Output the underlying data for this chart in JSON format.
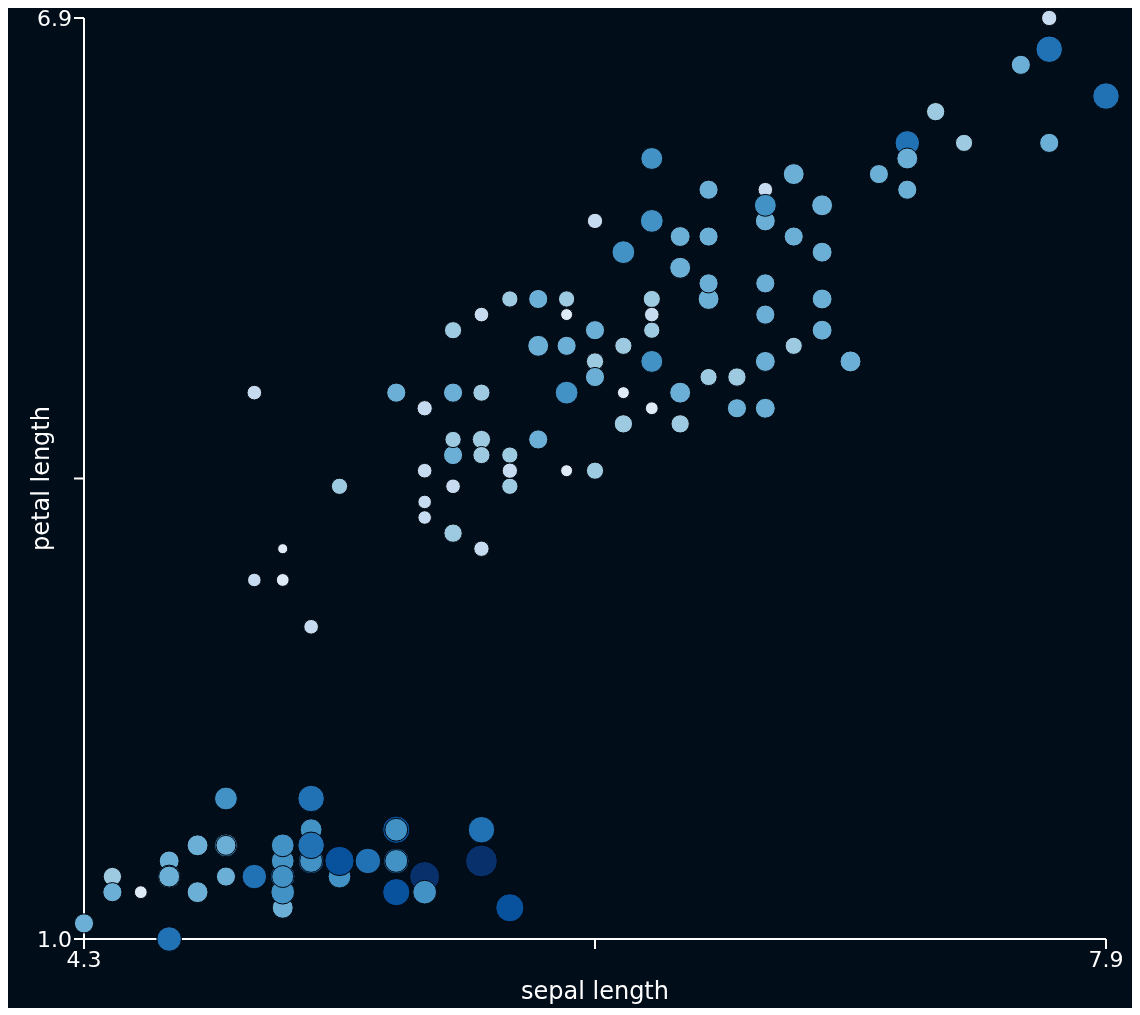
{
  "chart_data": {
    "type": "bubble",
    "xlabel": "sepal length",
    "ylabel": "petal length",
    "xlim": [
      4.3,
      7.9
    ],
    "ylim": [
      1.0,
      6.9
    ],
    "xticks": [
      4.3,
      {
        "value": 6.1,
        "label": null
      },
      7.9
    ],
    "yticks": [
      {
        "value": 1.0,
        "label": "1.0"
      },
      {
        "value": 3.95,
        "label": null
      },
      6.9
    ],
    "x": [
      4.7,
      4.6,
      5.0,
      5.4,
      4.6,
      5.0,
      4.4,
      5.4,
      4.8,
      4.8,
      4.3,
      5.8,
      5.7,
      5.4,
      5.7,
      5.4,
      5.1,
      4.6,
      5.1,
      4.8,
      5.0,
      5.2,
      4.7,
      4.8,
      5.4,
      5.2,
      5.5,
      5.0,
      5.5,
      4.9,
      4.4,
      5.1,
      5.0,
      4.5,
      5.1,
      5.1,
      4.6,
      5.3,
      5.0,
      7.0,
      6.4,
      6.9,
      6.5,
      5.7,
      6.3,
      4.9,
      6.6,
      5.2,
      5.0,
      5.9,
      6.0,
      6.1,
      5.6,
      6.7,
      5.6,
      5.8,
      6.2,
      5.6,
      5.9,
      6.1,
      6.1,
      6.4,
      6.6,
      6.8,
      6.7,
      5.7,
      5.5,
      5.5,
      5.8,
      6.0,
      5.4,
      6.0,
      6.7,
      6.3,
      5.6,
      5.5,
      5.5,
      6.1,
      5.8,
      5.0,
      5.6,
      5.7,
      5.7,
      6.2,
      5.1,
      5.7,
      6.3,
      5.8,
      7.1,
      6.5,
      7.6,
      4.9,
      7.3,
      6.7,
      7.2,
      6.5,
      6.8,
      5.7,
      6.4,
      6.5,
      7.7,
      7.7,
      6.0,
      6.9,
      5.6,
      6.3,
      7.2,
      6.2,
      6.1,
      7.2,
      7.4,
      7.9,
      6.3,
      6.1,
      7.7,
      6.3,
      6.4,
      6.0,
      6.9,
      6.7,
      6.9,
      6.8,
      6.7,
      6.7,
      6.3,
      6.5,
      6.2,
      5.9
    ],
    "values": [
      1.3,
      1.5,
      1.4,
      1.7,
      1.4,
      1.5,
      1.4,
      1.5,
      1.6,
      1.4,
      1.1,
      1.2,
      1.5,
      1.3,
      1.7,
      1.7,
      1.5,
      1.0,
      1.7,
      1.9,
      1.6,
      1.4,
      1.6,
      1.6,
      1.5,
      1.5,
      1.4,
      1.2,
      1.3,
      1.4,
      1.3,
      1.5,
      1.3,
      1.3,
      1.9,
      1.6,
      1.4,
      1.5,
      1.4,
      4.7,
      4.5,
      4.9,
      4.6,
      4.5,
      4.7,
      3.3,
      4.6,
      3.9,
      3.5,
      4.2,
      4.0,
      4.7,
      3.6,
      4.4,
      4.5,
      4.1,
      4.5,
      3.9,
      4.8,
      4.0,
      4.7,
      4.3,
      4.4,
      4.8,
      5.0,
      3.5,
      3.8,
      3.7,
      3.9,
      5.1,
      4.5,
      4.5,
      4.7,
      4.4,
      4.1,
      4.0,
      4.4,
      4.6,
      4.0,
      3.3,
      4.2,
      4.2,
      4.2,
      4.3,
      3.0,
      4.1,
      6.0,
      5.1,
      5.9,
      5.8,
      6.6,
      4.5,
      6.3,
      5.8,
      6.1,
      5.1,
      5.5,
      5.0,
      5.3,
      5.5,
      6.7,
      6.9,
      5.0,
      5.7,
      4.9,
      4.9,
      6.0,
      4.8,
      4.9,
      5.8,
      6.1,
      6.4,
      5.1,
      5.6,
      6.1,
      5.6,
      5.5,
      4.8,
      5.4,
      5.6,
      5.1,
      5.9,
      5.7,
      5.2,
      5.0,
      5.2,
      5.4,
      5.1
    ],
    "sizes": [
      0.43,
      0.39,
      0.59,
      0.73,
      0.51,
      0.51,
      0.33,
      0.64,
      0.51,
      0.36,
      0.36,
      0.78,
      1,
      0.73,
      0.69,
      0.51,
      0.64,
      0.59,
      0.47,
      0.51,
      0.51,
      0.51,
      0.43,
      0.39,
      0.51,
      0.84,
      0.89,
      0.43,
      0.55,
      0.59,
      0.36,
      0.51,
      0.55,
      0.16,
      0.69,
      0.69,
      0.43,
      0.64,
      0.47,
      0.43,
      0.43,
      0.39,
      0.29,
      0.29,
      0.47,
      0.18,
      0.33,
      0.26,
      0.1,
      0.36,
      0.14,
      0.33,
      0.33,
      0.39,
      0.36,
      0.26,
      0.14,
      0.21,
      0.43,
      0.29,
      0.29,
      0.33,
      0.36,
      0.29,
      0.36,
      0.23,
      0.18,
      0.18,
      0.26,
      0.26,
      0.36,
      0.51,
      0.39,
      0.16,
      0.36,
      0.21,
      0.23,
      0.36,
      0.23,
      0.16,
      0.26,
      0.36,
      0.33,
      0.33,
      0.21,
      0.29,
      0.47,
      0.26,
      0.36,
      0.36,
      0.36,
      0.21,
      0.33,
      0.21,
      0.59,
      0.43,
      0.36,
      0.21,
      0.43,
      0.36,
      0.69,
      0.23,
      0.14,
      0.43,
      0.29,
      0.26,
      0.43,
      0.29,
      0.36,
      0.36,
      0.29,
      0.69,
      0.29,
      0.23,
      0.36,
      0.51,
      0.39,
      0.36,
      0.39,
      0.39,
      0.39,
      0.43,
      0.47,
      0.36,
      0.21,
      0.36,
      0.51,
      0.36
    ],
    "colors": [
      "#6baed6",
      "#6baed6",
      "#2171b5",
      "#08519c",
      "#4292c6",
      "#4292c6",
      "#9ecae1",
      "#2171b5",
      "#4292c6",
      "#6baed6",
      "#6baed6",
      "#08519c",
      "#08306b",
      "#08519c",
      "#2171b5",
      "#4292c6",
      "#2171b5",
      "#2171b5",
      "#4292c6",
      "#4292c6",
      "#4292c6",
      "#4292c6",
      "#6baed6",
      "#6baed6",
      "#4292c6",
      "#08519c",
      "#08306b",
      "#6baed6",
      "#4292c6",
      "#2171b5",
      "#6baed6",
      "#4292c6",
      "#4292c6",
      "#deebf7",
      "#2171b5",
      "#2171b5",
      "#6baed6",
      "#2171b5",
      "#4292c6",
      "#6baed6",
      "#6baed6",
      "#6baed6",
      "#9ecae1",
      "#9ecae1",
      "#4292c6",
      "#c6dbef",
      "#9ecae1",
      "#9ecae1",
      "#deebf7",
      "#6baed6",
      "#deebf7",
      "#9ecae1",
      "#9ecae1",
      "#6baed6",
      "#6baed6",
      "#9ecae1",
      "#deebf7",
      "#c6dbef",
      "#6baed6",
      "#9ecae1",
      "#9ecae1",
      "#9ecae1",
      "#6baed6",
      "#9ecae1",
      "#6baed6",
      "#c6dbef",
      "#c6dbef",
      "#c6dbef",
      "#9ecae1",
      "#9ecae1",
      "#6baed6",
      "#4292c6",
      "#6baed6",
      "#deebf7",
      "#6baed6",
      "#c6dbef",
      "#c6dbef",
      "#6baed6",
      "#c6dbef",
      "#deebf7",
      "#9ecae1",
      "#6baed6",
      "#9ecae1",
      "#9ecae1",
      "#c6dbef",
      "#9ecae1",
      "#4292c6",
      "#9ecae1",
      "#6baed6",
      "#6baed6",
      "#6baed6",
      "#c6dbef",
      "#9ecae1",
      "#c6dbef",
      "#2171b5",
      "#6baed6",
      "#6baed6",
      "#c6dbef",
      "#6baed6",
      "#6baed6",
      "#2171b5",
      "#c6dbef",
      "#deebf7",
      "#6baed6",
      "#9ecae1",
      "#9ecae1",
      "#6baed6",
      "#9ecae1",
      "#6baed6",
      "#6baed6",
      "#9ecae1",
      "#2171b5",
      "#9ecae1",
      "#c6dbef",
      "#6baed6",
      "#4292c6",
      "#6baed6",
      "#6baed6",
      "#6baed6",
      "#6baed6",
      "#6baed6",
      "#6baed6",
      "#4292c6",
      "#6baed6",
      "#c6dbef",
      "#6baed6",
      "#4292c6",
      "#6baed6"
    ]
  }
}
